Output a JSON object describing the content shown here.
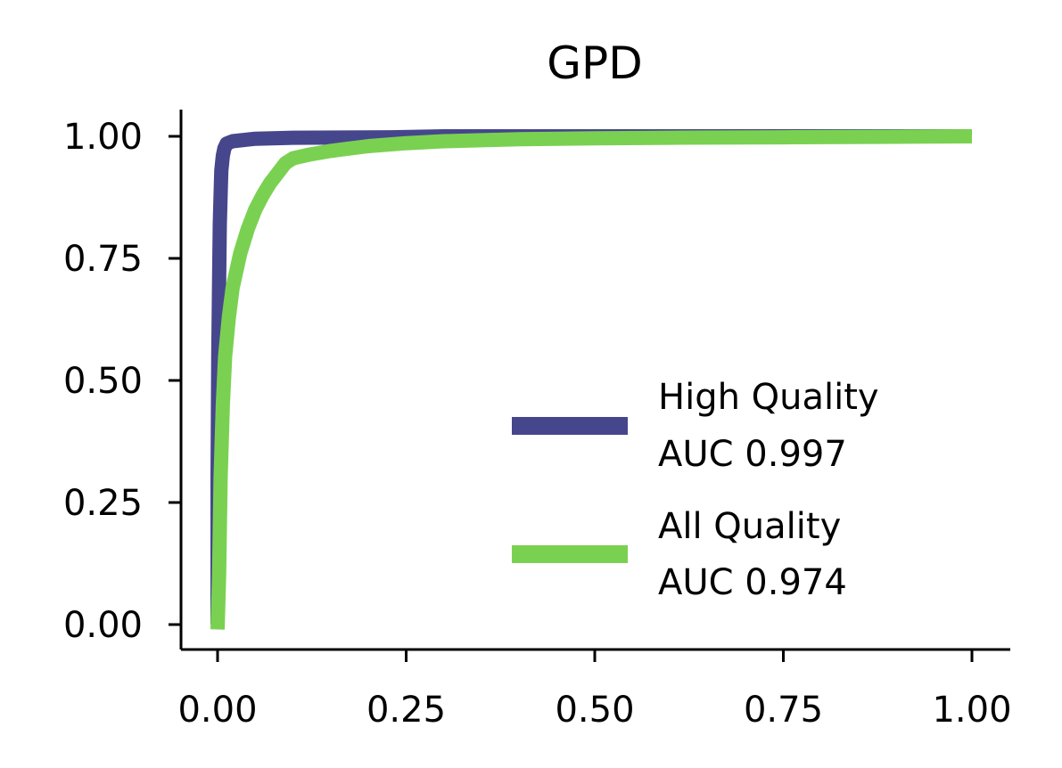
{
  "chart_data": {
    "type": "line",
    "title": "GPD",
    "xlabel": "",
    "ylabel": "",
    "xlim": [
      -0.05,
      1.05
    ],
    "ylim": [
      -0.05,
      1.05
    ],
    "xticks": [
      0.0,
      0.25,
      0.5,
      0.75,
      1.0
    ],
    "xtick_labels": [
      "0.00",
      "0.25",
      "0.50",
      "0.75",
      "1.00"
    ],
    "yticks": [
      0.0,
      0.25,
      0.5,
      0.75,
      1.0
    ],
    "ytick_labels": [
      "0.00",
      "0.25",
      "0.50",
      "0.75",
      "1.00"
    ],
    "grid": false,
    "legend_position": "lower-right",
    "series": [
      {
        "name": "High Quality AUC 0.997",
        "legend_line1": "High Quality",
        "legend_line2": "AUC 0.997",
        "color": "#46468c",
        "points": [
          [
            0,
            0
          ],
          [
            0,
            0.3
          ],
          [
            0.001,
            0.55
          ],
          [
            0.002,
            0.7
          ],
          [
            0.003,
            0.82
          ],
          [
            0.004,
            0.88
          ],
          [
            0.005,
            0.93
          ],
          [
            0.007,
            0.96
          ],
          [
            0.009,
            0.975
          ],
          [
            0.012,
            0.985
          ],
          [
            0.02,
            0.99
          ],
          [
            0.05,
            0.995
          ],
          [
            0.1,
            0.997
          ],
          [
            0.23,
            0.998
          ],
          [
            0.3,
            1.0
          ],
          [
            0.5,
            1.0
          ],
          [
            0.75,
            1.0
          ],
          [
            1.0,
            1.0
          ]
        ]
      },
      {
        "name": "All Quality AUC 0.974",
        "legend_line1": "All Quality",
        "legend_line2": "AUC 0.974",
        "color": "#7ad151",
        "points": [
          [
            0,
            -0.01
          ],
          [
            0.002,
            0.1
          ],
          [
            0.004,
            0.3
          ],
          [
            0.007,
            0.45
          ],
          [
            0.01,
            0.55
          ],
          [
            0.015,
            0.63
          ],
          [
            0.02,
            0.69
          ],
          [
            0.03,
            0.76
          ],
          [
            0.04,
            0.81
          ],
          [
            0.05,
            0.85
          ],
          [
            0.06,
            0.88
          ],
          [
            0.07,
            0.905
          ],
          [
            0.08,
            0.925
          ],
          [
            0.09,
            0.945
          ],
          [
            0.1,
            0.955
          ],
          [
            0.12,
            0.962
          ],
          [
            0.15,
            0.97
          ],
          [
            0.2,
            0.98
          ],
          [
            0.25,
            0.986
          ],
          [
            0.3,
            0.99
          ],
          [
            0.4,
            0.994
          ],
          [
            0.5,
            0.996
          ],
          [
            0.6,
            0.997
          ],
          [
            0.75,
            0.998
          ],
          [
            0.9,
            0.999
          ],
          [
            1.0,
            1.0
          ]
        ]
      }
    ]
  }
}
